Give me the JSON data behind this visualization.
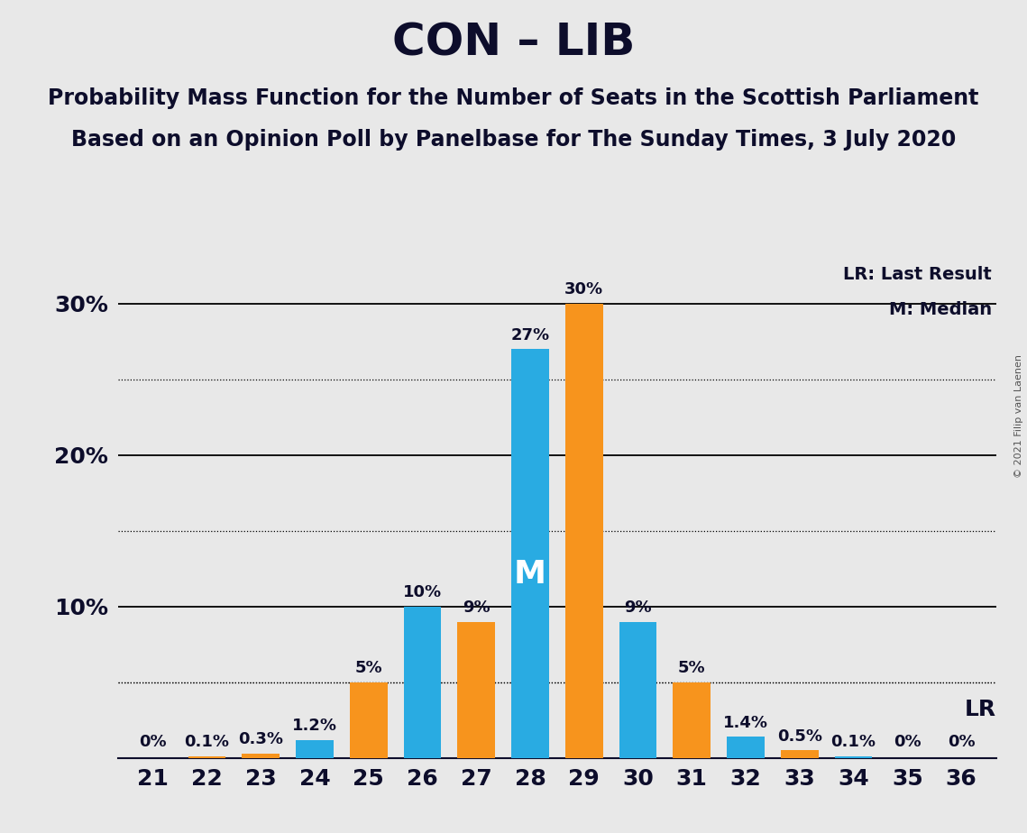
{
  "title": "CON – LIB",
  "subtitle1": "Probability Mass Function for the Number of Seats in the Scottish Parliament",
  "subtitle2": "Based on an Opinion Poll by Panelbase for The Sunday Times, 3 July 2020",
  "copyright": "© 2021 Filip van Laenen",
  "seats": [
    21,
    22,
    23,
    24,
    25,
    26,
    27,
    28,
    29,
    30,
    31,
    32,
    33,
    34,
    35,
    36
  ],
  "bar_values": [
    0.0,
    0.1,
    0.3,
    1.2,
    5.0,
    10.0,
    9.0,
    27.0,
    30.0,
    9.0,
    5.0,
    1.4,
    0.5,
    0.1,
    0.0,
    0.0
  ],
  "bar_colors": [
    "#29ABE2",
    "#F7941D",
    "#F7941D",
    "#29ABE2",
    "#F7941D",
    "#29ABE2",
    "#F7941D",
    "#29ABE2",
    "#F7941D",
    "#29ABE2",
    "#F7941D",
    "#29ABE2",
    "#F7941D",
    "#29ABE2",
    "#29ABE2",
    "#F7941D"
  ],
  "bar_labels": [
    "0%",
    "0.1%",
    "0.3%",
    "1.2%",
    "5%",
    "10%",
    "9%",
    "27%",
    "30%",
    "9%",
    "5%",
    "1.4%",
    "0.5%",
    "0.1%",
    "0%",
    "0%"
  ],
  "blue_color": "#29ABE2",
  "orange_color": "#F7941D",
  "background_color": "#E8E8E8",
  "median_seat": 28,
  "lr_seat": 31,
  "ylim": [
    0,
    33
  ],
  "dotted_lines": [
    5.0,
    15.0,
    25.0
  ],
  "solid_lines": [
    10.0,
    20.0,
    30.0
  ],
  "ytick_positions": [
    10,
    20,
    30
  ],
  "ytick_labels": [
    "10%",
    "20%",
    "30%"
  ],
  "legend_lr_text": "LR: Last Result",
  "legend_m_text": "M: Median",
  "lr_label": "LR",
  "title_fontsize": 36,
  "subtitle_fontsize": 17,
  "bar_width": 0.7
}
